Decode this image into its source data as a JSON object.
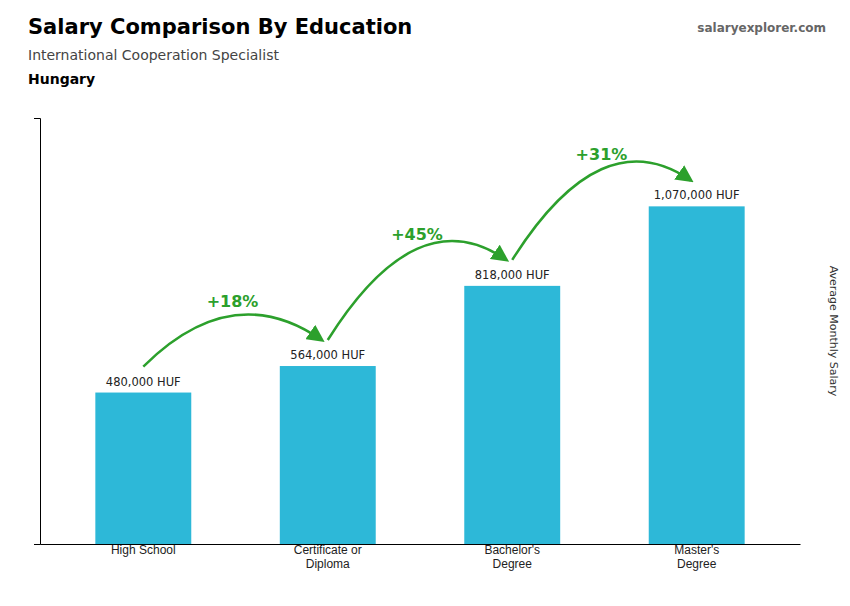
{
  "chart_data": {
    "type": "bar",
    "title": "Salary Comparison By Education",
    "subtitle": "International Cooperation Specialist",
    "country": "Hungary",
    "brand": "salaryexplorer.com",
    "categories": [
      "High School",
      "Certificate or\nDiploma",
      "Bachelor's\nDegree",
      "Master's\nDegree"
    ],
    "values": [
      480000,
      564000,
      818000,
      1070000
    ],
    "value_labels": [
      "480,000 HUF",
      "564,000 HUF",
      "818,000 HUF",
      "1,070,000 HUF"
    ],
    "data_labels": true,
    "color": "#2db8d8",
    "ylabel": "Average Monthly Salary",
    "ylim": [
      0,
      1350000
    ],
    "yticks": [],
    "tick_labels": "x",
    "grid": false,
    "annotations": [
      "+18%",
      "+45%",
      "+31%"
    ]
  }
}
